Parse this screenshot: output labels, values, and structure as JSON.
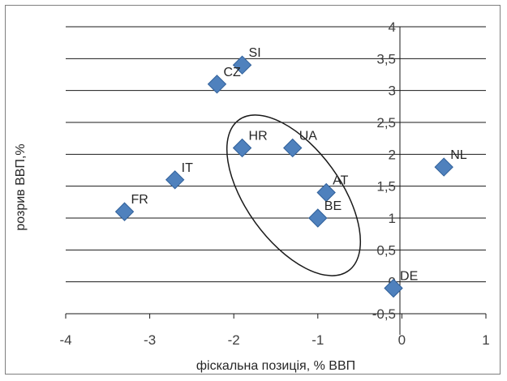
{
  "chart_data": {
    "type": "scatter",
    "title": "",
    "xlabel": "фіскальна позиція, % ВВП",
    "ylabel": "розрив ВВП,%",
    "xlim": [
      -4,
      1
    ],
    "ylim": [
      -0.5,
      4
    ],
    "x_ticks": [
      "-4",
      "-3",
      "-2",
      "-1",
      "0",
      "1"
    ],
    "y_ticks": [
      "-0,5",
      "0",
      "0,5",
      "1",
      "1,5",
      "2",
      "2,5",
      "3",
      "3,5",
      "4"
    ],
    "grid": "horizontal",
    "marker_color": "#4f81bd",
    "points": [
      {
        "label": "SI",
        "x": -1.9,
        "y": 3.4
      },
      {
        "label": "CZ",
        "x": -2.2,
        "y": 3.1
      },
      {
        "label": "HR",
        "x": -1.9,
        "y": 2.1
      },
      {
        "label": "UA",
        "x": -1.3,
        "y": 2.1
      },
      {
        "label": "NL",
        "x": 0.5,
        "y": 1.8
      },
      {
        "label": "IT",
        "x": -2.7,
        "y": 1.6
      },
      {
        "label": "AT",
        "x": -0.9,
        "y": 1.4
      },
      {
        "label": "FR",
        "x": -3.3,
        "y": 1.1
      },
      {
        "label": "BE",
        "x": -1.0,
        "y": 1.0
      },
      {
        "label": "DE",
        "x": -0.1,
        "y": -0.1
      }
    ]
  }
}
